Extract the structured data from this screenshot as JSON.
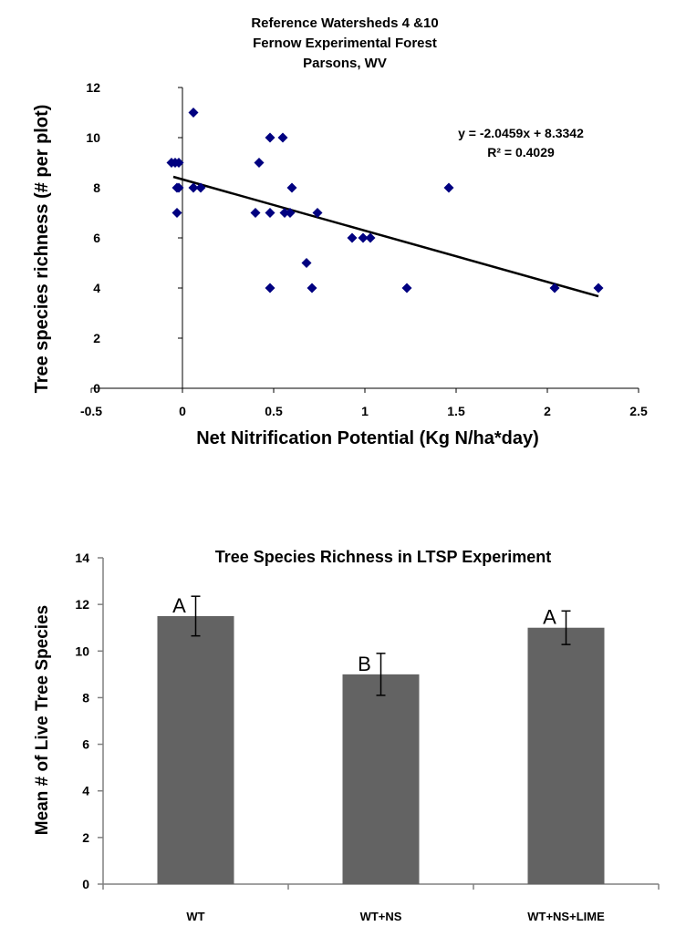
{
  "chart_data": [
    {
      "type": "scatter",
      "title": [
        "Reference Watersheds 4 &10",
        "Fernow Experimental Forest",
        "Parsons, WV"
      ],
      "xlabel": "Net Nitrification Potential (Kg N/ha*day)",
      "ylabel": "Tree species richness (# per plot)",
      "xlim": [
        -0.5,
        2.5
      ],
      "ylim": [
        0,
        12
      ],
      "xticks": [
        "-0.5",
        "0",
        "0.5",
        "1",
        "1.5",
        "2",
        "2.5"
      ],
      "yticks": [
        "0",
        "2",
        "4",
        "6",
        "8",
        "10",
        "12"
      ],
      "grid": false,
      "marker_color": "#000080",
      "points": [
        [
          -0.06,
          9
        ],
        [
          -0.04,
          9
        ],
        [
          -0.02,
          9
        ],
        [
          -0.03,
          8
        ],
        [
          -0.02,
          8
        ],
        [
          -0.03,
          7
        ],
        [
          0.06,
          8
        ],
        [
          0.1,
          8
        ],
        [
          0.06,
          11
        ],
        [
          0.4,
          7
        ],
        [
          0.42,
          9
        ],
        [
          0.48,
          7
        ],
        [
          0.48,
          10
        ],
        [
          0.48,
          4
        ],
        [
          0.55,
          10
        ],
        [
          0.56,
          7
        ],
        [
          0.59,
          7
        ],
        [
          0.6,
          8
        ],
        [
          0.68,
          5
        ],
        [
          0.71,
          4
        ],
        [
          0.74,
          7
        ],
        [
          0.93,
          6
        ],
        [
          0.99,
          6
        ],
        [
          1.03,
          6
        ],
        [
          1.23,
          4
        ],
        [
          1.46,
          8
        ],
        [
          2.04,
          4
        ],
        [
          2.28,
          4
        ]
      ],
      "trendline": {
        "slope": -2.0459,
        "intercept": 8.3342,
        "x_range": [
          -0.05,
          2.28
        ],
        "equation": "y = -2.0459x + 8.3342",
        "r2": "R² = 0.4029"
      }
    },
    {
      "type": "bar",
      "title": "Tree Species Richness in LTSP Experiment",
      "xlabel": "",
      "ylabel": "Mean # of Live Tree Species",
      "ylim": [
        0,
        14
      ],
      "yticks": [
        "0",
        "2",
        "4",
        "6",
        "8",
        "10",
        "12",
        "14"
      ],
      "categories": [
        "WT",
        "WT+NS",
        "WT+NS+LIME"
      ],
      "values": [
        11.5,
        9.0,
        11.0
      ],
      "errors": [
        0.85,
        0.9,
        0.72
      ],
      "letters": [
        "A",
        "B",
        "A"
      ],
      "bar_color": "#636363",
      "grid": false
    }
  ]
}
